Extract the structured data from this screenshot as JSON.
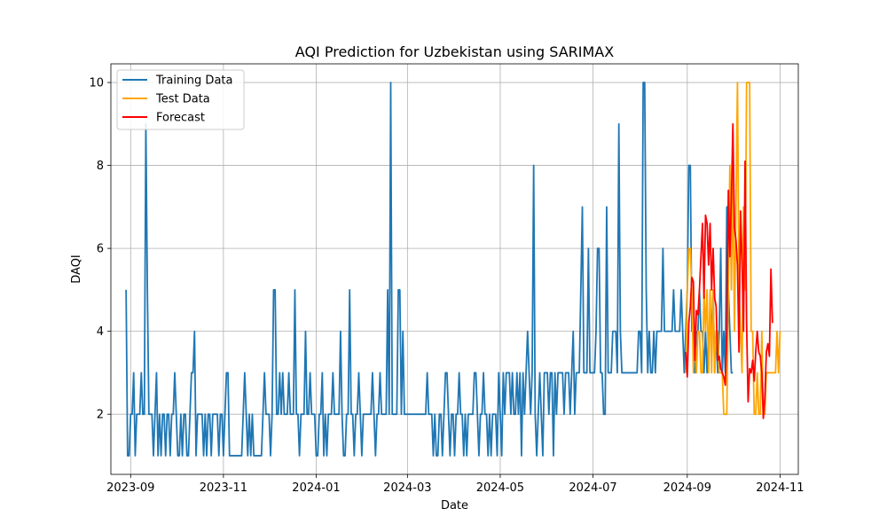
{
  "chart_data": {
    "type": "line",
    "title": "AQI Prediction for Uzbekistan using SARIMAX",
    "xlabel": "Date",
    "ylabel": "DAQI",
    "x_type": "date",
    "xlim": [
      "2023-08-19",
      "2024-11-13"
    ],
    "ylim": [
      0.55,
      10.45
    ],
    "x_ticks": [
      "2023-09-01",
      "2023-11-01",
      "2024-01-01",
      "2024-03-01",
      "2024-05-01",
      "2024-07-01",
      "2024-09-01",
      "2024-11-01"
    ],
    "x_tick_labels": [
      "2023-09",
      "2023-11",
      "2024-01",
      "2024-03",
      "2024-05",
      "2024-07",
      "2024-09",
      "2024-11"
    ],
    "y_ticks": [
      2,
      4,
      6,
      8,
      10
    ],
    "y_tick_labels": [
      "2",
      "4",
      "6",
      "8",
      "10"
    ],
    "grid": true,
    "legend_position": "top-left",
    "series": [
      {
        "name": "Training Data",
        "color": "#1f77b4",
        "start": "2023-08-29",
        "values": [
          5,
          1,
          1,
          2,
          2,
          3,
          1,
          2,
          2,
          2,
          3,
          2,
          2,
          9,
          5,
          2,
          2,
          2,
          1,
          2,
          3,
          1,
          2,
          1,
          2,
          2,
          1,
          2,
          2,
          1,
          2,
          2,
          3,
          2,
          1,
          1,
          2,
          1,
          2,
          2,
          1,
          1,
          2,
          3,
          3,
          4,
          1,
          2,
          2,
          2,
          2,
          1,
          2,
          1,
          2,
          2,
          1,
          2,
          2,
          2,
          2,
          1,
          2,
          2,
          1,
          2,
          3,
          3,
          1,
          1,
          1,
          1,
          1,
          1,
          1,
          1,
          1,
          2,
          3,
          2,
          1,
          2,
          1,
          2,
          1,
          1,
          1,
          1,
          1,
          1,
          2,
          3,
          2,
          2,
          2,
          1,
          2,
          5,
          5,
          2,
          2,
          3,
          2,
          3,
          2,
          2,
          2,
          3,
          2,
          2,
          2,
          5,
          2,
          2,
          1,
          2,
          2,
          2,
          4,
          2,
          2,
          3,
          2,
          2,
          2,
          1,
          1,
          2,
          2,
          3,
          1,
          2,
          1,
          2,
          2,
          2,
          3,
          2,
          2,
          2,
          2,
          4,
          2,
          1,
          1,
          2,
          2,
          5,
          2,
          2,
          1,
          2,
          2,
          3,
          2,
          1,
          2,
          2,
          2,
          2,
          2,
          2,
          3,
          2,
          1,
          2,
          2,
          3,
          2,
          2,
          2,
          2,
          5,
          2,
          10,
          2,
          2,
          2,
          2,
          5,
          5,
          2,
          4,
          2,
          2,
          2,
          2,
          2,
          2,
          2,
          2,
          2,
          2,
          2,
          2,
          2,
          2,
          2,
          3,
          2,
          2,
          2,
          1,
          2,
          1,
          1,
          2,
          2,
          1,
          2,
          3,
          3,
          2,
          1,
          2,
          2,
          1,
          2,
          2,
          3,
          2,
          2,
          1,
          2,
          1,
          2,
          2,
          2,
          2,
          3,
          3,
          2,
          1,
          2,
          2,
          3,
          2,
          2,
          1,
          2,
          1,
          2,
          2,
          2,
          1,
          3,
          2,
          1,
          3,
          2,
          3,
          3,
          3,
          2,
          3,
          2,
          2,
          3,
          2,
          3,
          1,
          3,
          2,
          3,
          4,
          3,
          2,
          3,
          8,
          2,
          1,
          2,
          3,
          2,
          1,
          3,
          3,
          3,
          2,
          3,
          3,
          1,
          3,
          2,
          3,
          3,
          3,
          3,
          2,
          3,
          3,
          3,
          2,
          3,
          4,
          2,
          3,
          3,
          3,
          5,
          7,
          3,
          3,
          3,
          6,
          3,
          3,
          3,
          3,
          4,
          6,
          6,
          3,
          3,
          2,
          2,
          7,
          3,
          3,
          3,
          4,
          4,
          4,
          3,
          9,
          4,
          3,
          3,
          3,
          3,
          3,
          3,
          3,
          3,
          3,
          3,
          3,
          4,
          4,
          3,
          10,
          10,
          5,
          3,
          4,
          3,
          3,
          4,
          3,
          4,
          4,
          4,
          4,
          6,
          4,
          4,
          4,
          4,
          4,
          4,
          5,
          4,
          4,
          4,
          4,
          5,
          4,
          3,
          4,
          5,
          8,
          8,
          4,
          4,
          3,
          4,
          4,
          5,
          4,
          4,
          3,
          4,
          3,
          4,
          4,
          4,
          5,
          3,
          4,
          3,
          4,
          6,
          3,
          4,
          3,
          7,
          5,
          4,
          3,
          3
        ]
      },
      {
        "name": "Test Data",
        "color": "#ffa500",
        "start": "2024-08-31",
        "values": [
          3,
          5,
          6,
          6,
          5,
          3,
          4,
          3,
          4,
          4,
          3,
          3,
          5,
          4,
          5,
          3,
          5,
          3,
          5,
          3,
          4,
          4,
          3,
          3,
          3,
          2,
          2,
          2,
          5,
          8,
          5,
          8,
          4,
          7,
          10,
          5,
          4,
          3,
          7,
          5,
          10,
          10,
          10,
          4,
          4,
          2,
          2,
          3,
          2,
          2,
          4,
          2,
          2,
          3,
          3,
          3,
          3,
          3,
          3,
          3,
          4,
          3,
          4
        ]
      },
      {
        "name": "Forecast",
        "color": "#ff0000",
        "start": "2024-08-31",
        "values": [
          3.5,
          2.9,
          4.2,
          4.6,
          5.3,
          5.2,
          3.3,
          4.5,
          4.4,
          5.0,
          5.8,
          6.6,
          4.8,
          6.8,
          6.6,
          5.6,
          6.6,
          5.0,
          6.0,
          4.8,
          4.6,
          3.3,
          3.4,
          3.1,
          3.0,
          2.9,
          2.7,
          4.0,
          7.4,
          5.8,
          7.2,
          9.0,
          6.5,
          6.2,
          5.6,
          3.5,
          6.9,
          5.7,
          4.0,
          8.1,
          4.2,
          2.3,
          3.1,
          3.0,
          3.3,
          2.8,
          3.5,
          4.0,
          3.5,
          3.4,
          3.0,
          1.9,
          2.4,
          3.5,
          3.7,
          3.4,
          5.5,
          4.2
        ]
      }
    ]
  }
}
